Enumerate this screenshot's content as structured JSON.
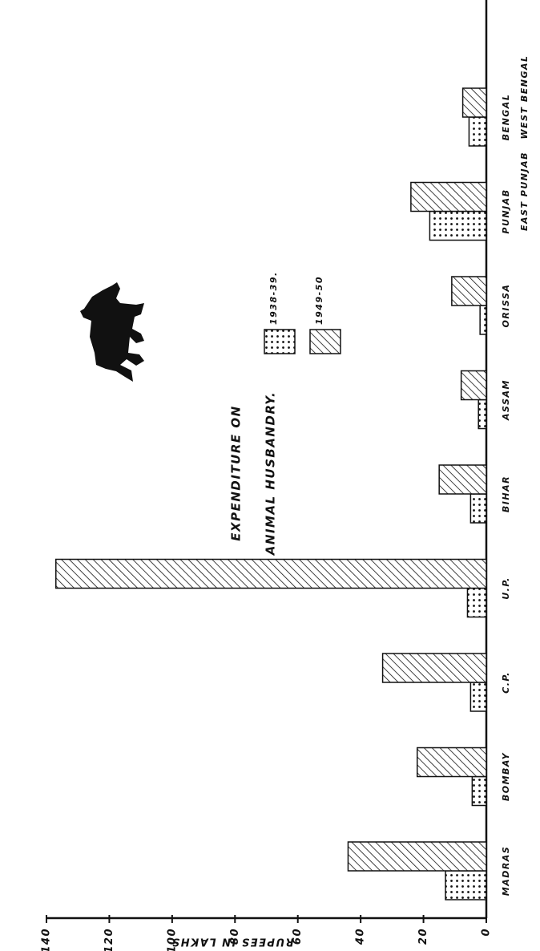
{
  "chart_data": {
    "type": "bar",
    "title": "EXPENDITURE ON",
    "subtitle": "ANIMAL HUSBANDRY.",
    "y_label": "RUPEES IN LAKHS",
    "categories": [
      "MADRAS",
      "BOMBAY",
      "C.P.",
      "U.P.",
      "BIHAR",
      "ASSAM",
      "ORISSA",
      "PUNJAB",
      "BENGAL"
    ],
    "sublabels": [
      null,
      null,
      null,
      null,
      null,
      null,
      null,
      "EAST PUNJAB",
      "WEST BENGAL"
    ],
    "series": [
      {
        "name": "1938-39.",
        "color": "dots",
        "values": [
          13,
          4.5,
          5,
          6,
          5,
          2.5,
          2,
          18,
          5.5
        ]
      },
      {
        "name": "1949-50",
        "color": "hatch",
        "values": [
          44,
          22,
          33,
          137,
          15,
          8,
          11,
          24,
          7.5
        ]
      }
    ],
    "ylim": [
      0,
      140
    ],
    "yticks": [
      0,
      20,
      40,
      60,
      80,
      100,
      120,
      140
    ]
  }
}
